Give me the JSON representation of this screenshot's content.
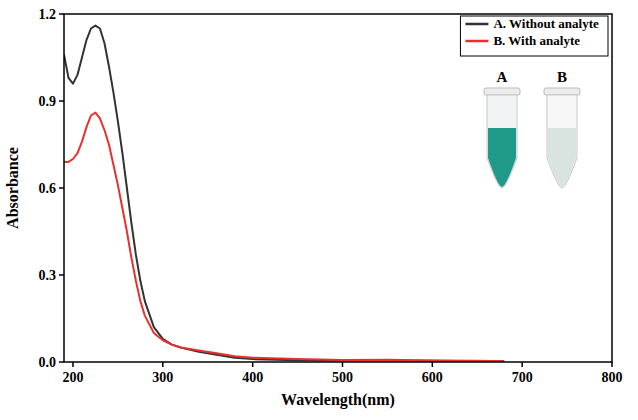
{
  "chart_data": {
    "type": "line",
    "x_label": "Wavelength(nm)",
    "y_label": "Absorbance",
    "x": [
      190,
      195,
      200,
      205,
      210,
      215,
      220,
      225,
      230,
      235,
      240,
      245,
      250,
      255,
      260,
      265,
      270,
      275,
      280,
      290,
      300,
      310,
      320,
      340,
      360,
      380,
      400,
      450,
      500,
      550,
      600,
      650,
      680
    ],
    "series": [
      {
        "name": "A. Without analyte",
        "color": "#333333",
        "values": [
          1.06,
          0.98,
          0.96,
          0.99,
          1.05,
          1.11,
          1.15,
          1.16,
          1.15,
          1.1,
          1.02,
          0.93,
          0.83,
          0.72,
          0.6,
          0.48,
          0.37,
          0.28,
          0.21,
          0.12,
          0.08,
          0.06,
          0.05,
          0.035,
          0.025,
          0.015,
          0.01,
          0.006,
          0.005,
          0.005,
          0.004,
          0.003,
          0.003
        ]
      },
      {
        "name": "B. With analyte",
        "color": "#e8312f",
        "values": [
          0.69,
          0.69,
          0.7,
          0.72,
          0.76,
          0.81,
          0.85,
          0.86,
          0.84,
          0.8,
          0.75,
          0.68,
          0.61,
          0.53,
          0.45,
          0.36,
          0.28,
          0.21,
          0.16,
          0.1,
          0.075,
          0.06,
          0.05,
          0.04,
          0.03,
          0.02,
          0.015,
          0.01,
          0.007,
          0.008,
          0.005,
          0.004,
          0.003
        ]
      }
    ],
    "xlim": [
      190,
      800
    ],
    "xticks": [
      200,
      300,
      400,
      500,
      600,
      700,
      800
    ],
    "ylim": [
      0,
      1.2
    ],
    "yticks": [
      {
        "value": 0,
        "label": "0.0"
      },
      0.3,
      0.6,
      0.9,
      1.2
    ],
    "legend": "upper right",
    "annotations": [
      "A",
      "B"
    ]
  }
}
